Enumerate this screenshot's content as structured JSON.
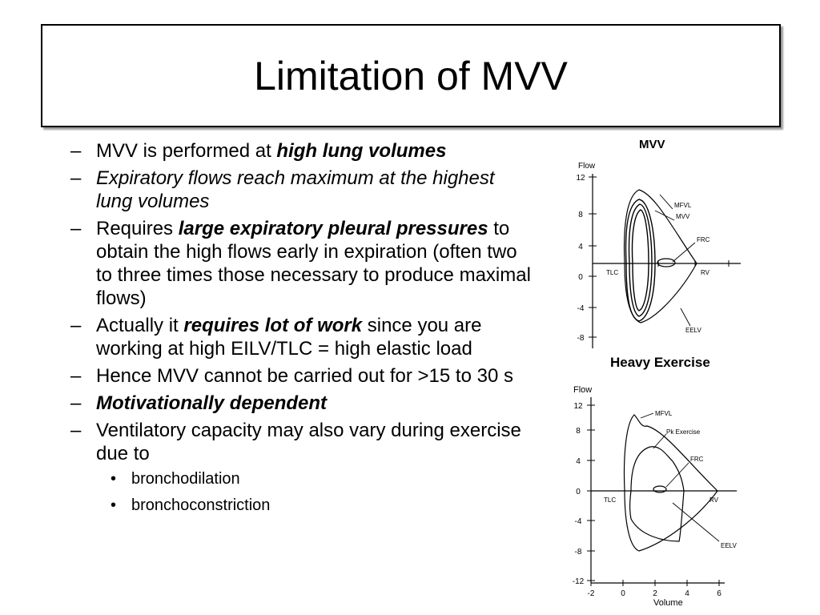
{
  "title": "Limitation of MVV",
  "bullets": [
    {
      "parts": [
        {
          "text": "MVV is performed at ",
          "style": "normal"
        },
        {
          "text": "high lung volumes",
          "style": "bold-italic"
        }
      ]
    },
    {
      "parts": [
        {
          "text": "Expiratory flows reach maximum at the highest lung volumes",
          "style": "italic"
        }
      ]
    },
    {
      "parts": [
        {
          "text": "Requires ",
          "style": "normal"
        },
        {
          "text": "large expiratory pleural pressures",
          "style": "bold-italic"
        },
        {
          "text": " to obtain the high flows early in expiration (often two to three times those necessary to produce maximal flows)",
          "style": "normal"
        }
      ]
    },
    {
      "parts": [
        {
          "text": "Actually it ",
          "style": "normal"
        },
        {
          "text": "requires lot of work",
          "style": "bold-italic"
        },
        {
          "text": " since you are working at high EILV/TLC  = high elastic load",
          "style": "normal"
        }
      ]
    },
    {
      "parts": [
        {
          "text": "Hence MVV cannot be carried out for >15 to 30 s",
          "style": "normal"
        }
      ]
    },
    {
      "parts": [
        {
          "text": "Motivationally dependent",
          "style": "bold-italic"
        }
      ]
    },
    {
      "parts": [
        {
          "text": "Ventilatory capacity may also vary during exercise due to",
          "style": "normal"
        }
      ],
      "subitems": [
        "bronchodilation",
        "bronchoconstriction"
      ]
    }
  ],
  "figure_mvv": {
    "title": "MVV",
    "y_axis_label": "Flow",
    "y_ticks": [
      "12",
      "8",
      "4",
      "0",
      "-4",
      "-8"
    ],
    "labels": {
      "mfvl": "MFVL",
      "mvv": "MVV",
      "frc": "FRC",
      "tlc": "TLC",
      "rv": "RV",
      "eelv": "EELV"
    }
  },
  "figure_exercise": {
    "title": "Heavy Exercise",
    "y_axis_label": "Flow",
    "x_axis_label": "Volume",
    "y_ticks": [
      "12",
      "8",
      "4",
      "0",
      "-4",
      "-8",
      "-12"
    ],
    "x_ticks": [
      "-2",
      "0",
      "2",
      "4",
      "6"
    ],
    "labels": {
      "mfvl": "MFVL",
      "pk": "Pk Exercise",
      "frc": "FRC",
      "tlc": "TLC",
      "rv": "RV",
      "eelv": "EELV"
    }
  }
}
